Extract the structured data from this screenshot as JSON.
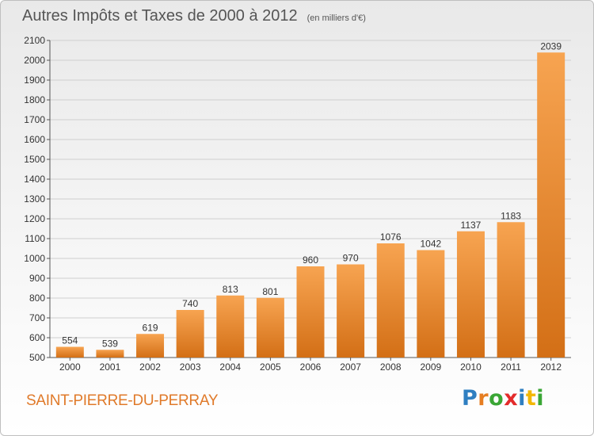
{
  "header": {
    "title": "Autres Impôts et Taxes de 2000 à 2012",
    "subtitle": "(en milliers d'€)"
  },
  "footer": {
    "commune": "SAINT-PIERRE-DU-PERRAY",
    "logo_letters": [
      "P",
      "r",
      "o",
      "x",
      "i",
      "t",
      "i"
    ],
    "logo_colors": [
      "#2f7fc1",
      "#e67e22",
      "#3aa635",
      "#e32b2b",
      "#2f7fc1",
      "#f2b705",
      "#3aa635"
    ]
  },
  "colors": {
    "bar_light": "#f7a451",
    "bar_dark": "#d36f16",
    "grid": "#cfcfcf",
    "accent": "#e07a2a"
  },
  "chart_data": {
    "type": "bar",
    "title": "Autres Impôts et Taxes de 2000 à 2012",
    "subtitle": "(en milliers d'€)",
    "categories": [
      "2000",
      "2001",
      "2002",
      "2003",
      "2004",
      "2005",
      "2006",
      "2007",
      "2008",
      "2009",
      "2010",
      "2011",
      "2012"
    ],
    "values": [
      554,
      539,
      619,
      740,
      813,
      801,
      960,
      970,
      1076,
      1042,
      1137,
      1183,
      2039
    ],
    "ylim": [
      500,
      2100
    ],
    "yticks": [
      500,
      600,
      700,
      800,
      900,
      1000,
      1100,
      1200,
      1300,
      1400,
      1500,
      1600,
      1700,
      1800,
      1900,
      2000,
      2100
    ],
    "grid": true,
    "data_labels": true
  }
}
